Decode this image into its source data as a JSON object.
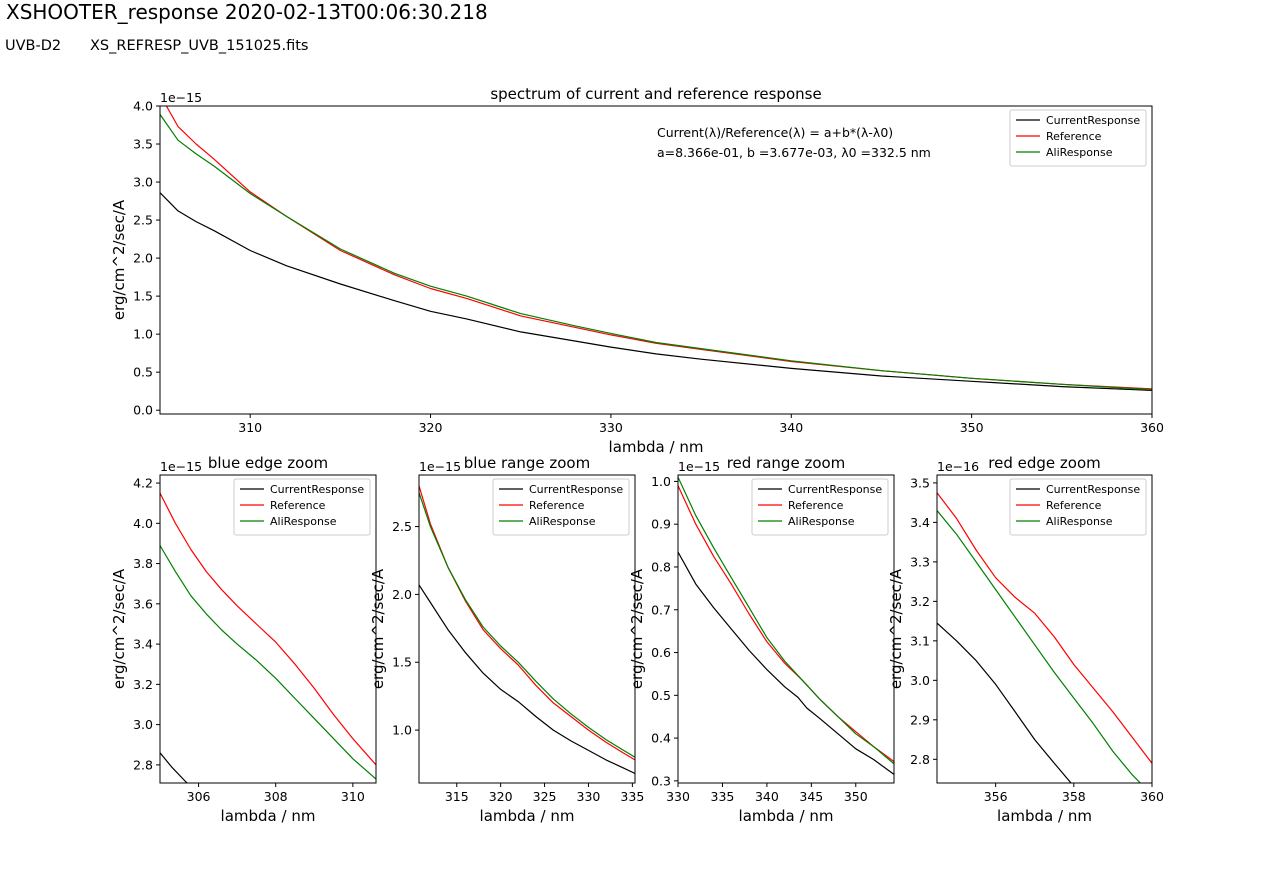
{
  "page": {
    "title": "XSHOOTER_response 2020-02-13T00:06:30.218",
    "arm": "UVB-D2",
    "ref_file": "XS_REFRESP_UVB_151025.fits"
  },
  "annotation": {
    "line1": "Current(λ)/Reference(λ) = a+b*(λ-λ0)",
    "line2": " a=8.366e-01,  b =3.677e-03, λ0 =332.5 nm"
  },
  "colors": {
    "CurrentResponse": "#000000",
    "Reference": "#ff0000",
    "AliResponse": "#008000"
  },
  "chart_data": [
    {
      "type": "line",
      "title": "spectrum of current and reference response",
      "xlabel": "lambda / nm",
      "ylabel": "erg/cm^2/sec/A",
      "offset_text": "1e−15",
      "xlim": [
        305,
        360
      ],
      "ylim": [
        -0.05,
        4.0
      ],
      "xticks": [
        310,
        320,
        330,
        340,
        350,
        360
      ],
      "xtick_labels": [
        "310",
        "320",
        "330",
        "340",
        "350",
        "360"
      ],
      "yticks": [
        0,
        0.5,
        1.0,
        1.5,
        2.0,
        2.5,
        3.0,
        3.5,
        4.0
      ],
      "ytick_labels": [
        "0.0",
        "0.5",
        "1.0",
        "1.5",
        "2.0",
        "2.5",
        "3.0",
        "3.5",
        "4.0"
      ],
      "grid": false,
      "legend": "upper right",
      "series": [
        {
          "name": "CurrentResponse",
          "color": "#000000",
          "x": [
            305,
            306,
            307,
            308,
            310,
            312,
            315,
            318,
            320,
            322,
            325,
            328,
            330,
            332.5,
            335,
            340,
            345,
            350,
            355,
            360
          ],
          "y": [
            2.86,
            2.62,
            2.48,
            2.36,
            2.1,
            1.9,
            1.66,
            1.44,
            1.3,
            1.2,
            1.03,
            0.91,
            0.83,
            0.74,
            0.67,
            0.55,
            0.45,
            0.38,
            0.31,
            0.26
          ]
        },
        {
          "name": "Reference",
          "color": "#ff0000",
          "x": [
            305,
            306,
            307,
            308,
            310,
            312,
            315,
            318,
            320,
            322,
            325,
            328,
            330,
            332.5,
            335,
            340,
            345,
            350,
            355,
            360
          ],
          "y": [
            4.15,
            3.73,
            3.5,
            3.3,
            2.87,
            2.55,
            2.1,
            1.78,
            1.6,
            1.47,
            1.24,
            1.09,
            0.99,
            0.88,
            0.8,
            0.64,
            0.52,
            0.42,
            0.34,
            0.28
          ]
        },
        {
          "name": "AliResponse",
          "color": "#008000",
          "x": [
            305,
            306,
            307,
            308,
            310,
            312,
            315,
            318,
            320,
            322,
            325,
            328,
            330,
            332.5,
            335,
            340,
            345,
            350,
            355,
            360
          ],
          "y": [
            3.89,
            3.55,
            3.37,
            3.21,
            2.85,
            2.55,
            2.12,
            1.8,
            1.63,
            1.5,
            1.27,
            1.11,
            1.01,
            0.89,
            0.81,
            0.65,
            0.52,
            0.42,
            0.34,
            0.27
          ]
        }
      ]
    },
    {
      "type": "line",
      "title": "blue edge zoom",
      "xlabel": "lambda / nm",
      "ylabel": "erg/cm^2/sec/A",
      "offset_text": "1e−15",
      "xlim": [
        305.0,
        310.6
      ],
      "ylim": [
        2.71,
        4.24
      ],
      "xticks": [
        306,
        308,
        310
      ],
      "xtick_labels": [
        "306",
        "308",
        "310"
      ],
      "yticks": [
        2.8,
        3.0,
        3.2,
        3.4,
        3.6,
        3.8,
        4.0,
        4.2
      ],
      "ytick_labels": [
        "2.8",
        "3.0",
        "3.2",
        "3.4",
        "3.6",
        "3.8",
        "4.0",
        "4.2"
      ],
      "grid": false,
      "legend": "upper right",
      "series": [
        {
          "name": "CurrentResponse",
          "color": "#000000",
          "x": [
            305.0,
            305.3,
            305.6,
            305.8
          ],
          "y": [
            2.86,
            2.79,
            2.73,
            2.69
          ]
        },
        {
          "name": "Reference",
          "color": "#ff0000",
          "x": [
            305.0,
            305.4,
            305.8,
            306.2,
            306.6,
            307.0,
            307.5,
            308.0,
            308.5,
            309.0,
            309.5,
            310.0,
            310.6
          ],
          "y": [
            4.15,
            4.0,
            3.87,
            3.76,
            3.67,
            3.59,
            3.5,
            3.41,
            3.3,
            3.18,
            3.05,
            2.93,
            2.8
          ]
        },
        {
          "name": "AliResponse",
          "color": "#008000",
          "x": [
            305.0,
            305.4,
            305.8,
            306.2,
            306.6,
            307.0,
            307.5,
            308.0,
            308.5,
            309.0,
            309.5,
            310.0,
            310.6
          ],
          "y": [
            3.89,
            3.76,
            3.64,
            3.55,
            3.47,
            3.4,
            3.32,
            3.23,
            3.13,
            3.03,
            2.93,
            2.83,
            2.73
          ]
        }
      ]
    },
    {
      "type": "line",
      "title": "blue range zoom",
      "xlabel": "lambda / nm",
      "ylabel": "erg/cm^2/sec/A",
      "offset_text": "1e−15",
      "xlim": [
        310.7,
        335.3
      ],
      "ylim": [
        0.61,
        2.88
      ],
      "xticks": [
        315,
        320,
        325,
        330,
        335
      ],
      "xtick_labels": [
        "315",
        "320",
        "325",
        "330",
        "335"
      ],
      "yticks": [
        1.0,
        1.5,
        2.0,
        2.5
      ],
      "ytick_labels": [
        "1.0",
        "1.5",
        "2.0",
        "2.5"
      ],
      "grid": false,
      "legend": "upper right",
      "series": [
        {
          "name": "CurrentResponse",
          "color": "#000000",
          "x": [
            310.7,
            312,
            314,
            316,
            318,
            320,
            322,
            324,
            326,
            328,
            330,
            332,
            334,
            335.3
          ],
          "y": [
            2.07,
            1.94,
            1.74,
            1.57,
            1.42,
            1.3,
            1.21,
            1.1,
            1.0,
            0.92,
            0.85,
            0.78,
            0.72,
            0.68
          ]
        },
        {
          "name": "Reference",
          "color": "#ff0000",
          "x": [
            310.7,
            312,
            314,
            316,
            318,
            320,
            322,
            324,
            326,
            328,
            330,
            332,
            334,
            335.3
          ],
          "y": [
            2.8,
            2.52,
            2.2,
            1.95,
            1.74,
            1.6,
            1.48,
            1.33,
            1.2,
            1.1,
            1.0,
            0.91,
            0.83,
            0.78
          ]
        },
        {
          "name": "AliResponse",
          "color": "#008000",
          "x": [
            310.7,
            312,
            314,
            316,
            318,
            320,
            322,
            324,
            326,
            328,
            330,
            332,
            334,
            335.3
          ],
          "y": [
            2.75,
            2.5,
            2.2,
            1.96,
            1.76,
            1.62,
            1.5,
            1.36,
            1.23,
            1.12,
            1.02,
            0.93,
            0.85,
            0.8
          ]
        }
      ]
    },
    {
      "type": "line",
      "title": "red range zoom",
      "xlabel": "lambda / nm",
      "ylabel": "erg/cm^2/sec/A",
      "offset_text": "1e−15",
      "xlim": [
        330.0,
        354.3
      ],
      "ylim": [
        0.295,
        1.015
      ],
      "xticks": [
        330,
        335,
        340,
        345,
        350
      ],
      "xtick_labels": [
        "330",
        "335",
        "340",
        "345",
        "350"
      ],
      "yticks": [
        0.3,
        0.4,
        0.5,
        0.6,
        0.7,
        0.8,
        0.9,
        1.0
      ],
      "ytick_labels": [
        "0.3",
        "0.4",
        "0.5",
        "0.6",
        "0.7",
        "0.8",
        "0.9",
        "1.0"
      ],
      "grid": false,
      "legend": "upper right",
      "series": [
        {
          "name": "CurrentResponse",
          "color": "#000000",
          "x": [
            330,
            332,
            334,
            336,
            338,
            340,
            342,
            343.5,
            344.5,
            346,
            348,
            350,
            352,
            354.3
          ],
          "y": [
            0.835,
            0.76,
            0.705,
            0.655,
            0.605,
            0.56,
            0.52,
            0.495,
            0.47,
            0.445,
            0.41,
            0.375,
            0.35,
            0.315
          ]
        },
        {
          "name": "Reference",
          "color": "#ff0000",
          "x": [
            330,
            332,
            334,
            336,
            338,
            340,
            342,
            344,
            346,
            348,
            350,
            352,
            354.3
          ],
          "y": [
            0.99,
            0.9,
            0.825,
            0.76,
            0.69,
            0.625,
            0.575,
            0.535,
            0.49,
            0.45,
            0.415,
            0.38,
            0.345
          ]
        },
        {
          "name": "AliResponse",
          "color": "#008000",
          "x": [
            330,
            332,
            334,
            336,
            338,
            340,
            342,
            344,
            346,
            348,
            350,
            352,
            354.3
          ],
          "y": [
            1.01,
            0.92,
            0.845,
            0.775,
            0.705,
            0.635,
            0.58,
            0.535,
            0.49,
            0.45,
            0.41,
            0.38,
            0.34
          ]
        }
      ]
    },
    {
      "type": "line",
      "title": "red edge zoom",
      "xlabel": "lambda / nm",
      "ylabel": "erg/cm^2/sec/A",
      "offset_text": "1e−16",
      "xlim": [
        354.5,
        360.0
      ],
      "ylim": [
        2.74,
        3.52
      ],
      "xticks": [
        356,
        358,
        360
      ],
      "xtick_labels": [
        "356",
        "358",
        "360"
      ],
      "yticks": [
        2.8,
        2.9,
        3.0,
        3.1,
        3.2,
        3.3,
        3.4,
        3.5
      ],
      "ytick_labels": [
        "2.8",
        "2.9",
        "3.0",
        "3.1",
        "3.2",
        "3.3",
        "3.4",
        "3.5"
      ],
      "grid": false,
      "legend": "upper right",
      "series": [
        {
          "name": "CurrentResponse",
          "color": "#000000",
          "x": [
            354.5,
            355,
            355.5,
            356,
            356.5,
            357,
            357.5,
            358.1
          ],
          "y": [
            3.145,
            3.1,
            3.05,
            2.99,
            2.92,
            2.85,
            2.79,
            2.72
          ]
        },
        {
          "name": "Reference",
          "color": "#ff0000",
          "x": [
            354.5,
            355,
            355.5,
            356,
            356.5,
            357,
            357.5,
            358,
            358.5,
            359,
            359.5,
            360
          ],
          "y": [
            3.475,
            3.41,
            3.33,
            3.26,
            3.21,
            3.17,
            3.11,
            3.04,
            2.98,
            2.92,
            2.855,
            2.79
          ]
        },
        {
          "name": "AliResponse",
          "color": "#008000",
          "x": [
            354.5,
            355,
            355.5,
            356,
            356.5,
            357,
            357.5,
            358,
            358.5,
            359,
            359.5,
            359.9
          ],
          "y": [
            3.43,
            3.37,
            3.3,
            3.23,
            3.16,
            3.09,
            3.02,
            2.955,
            2.89,
            2.82,
            2.76,
            2.72
          ]
        }
      ]
    }
  ]
}
